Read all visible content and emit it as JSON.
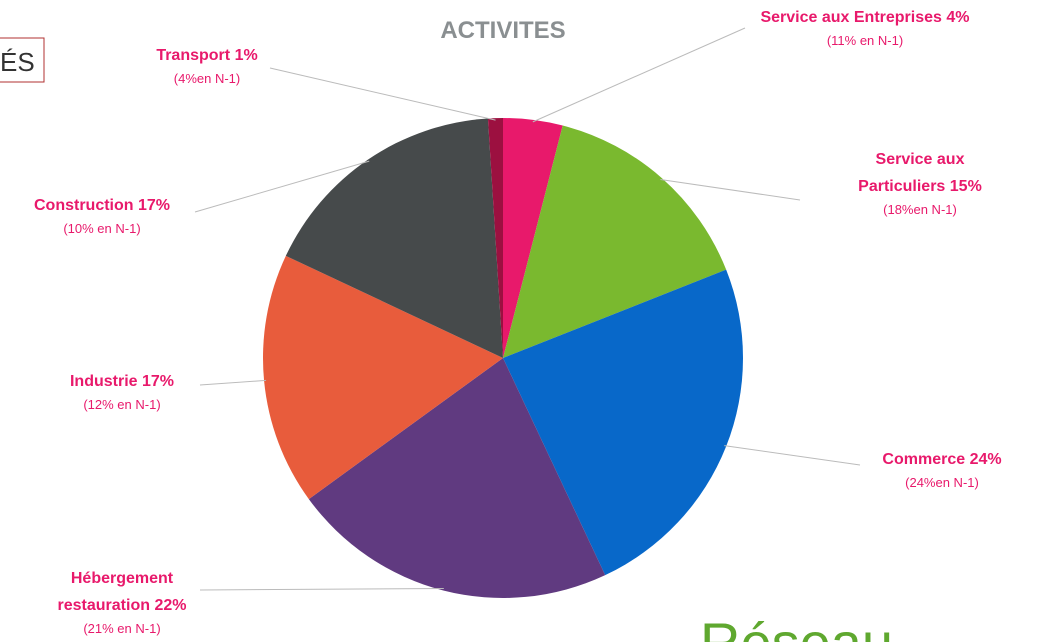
{
  "chart_data": {
    "type": "pie",
    "title": "ACTIVITES",
    "categories": [
      "Service aux Entreprises",
      "Service aux Particuliers",
      "Commerce",
      "Hébergement restauration",
      "Industrie ",
      "Construction",
      "Transport"
    ],
    "values": [
      4,
      15,
      24,
      22,
      17,
      17,
      1
    ],
    "value_labels": [
      "4%",
      "15%",
      "24%",
      "22%",
      "17%",
      "17%",
      "1%"
    ],
    "notes": [
      "(11% en N-1)",
      "(18%en N-1)",
      "(24%en N-1)",
      "(21% en N-1)",
      "(12% en N-1)",
      "(10% en N-1)",
      "(4%en N-1)"
    ],
    "colors": [
      "#e8196b",
      "#7ab92f",
      "#0868c9",
      "#603a80",
      "#e85c3c",
      "#464a4b",
      "#9c1040"
    ]
  },
  "slide": {
    "box_text": "ÉS",
    "logo": "Réseau"
  }
}
